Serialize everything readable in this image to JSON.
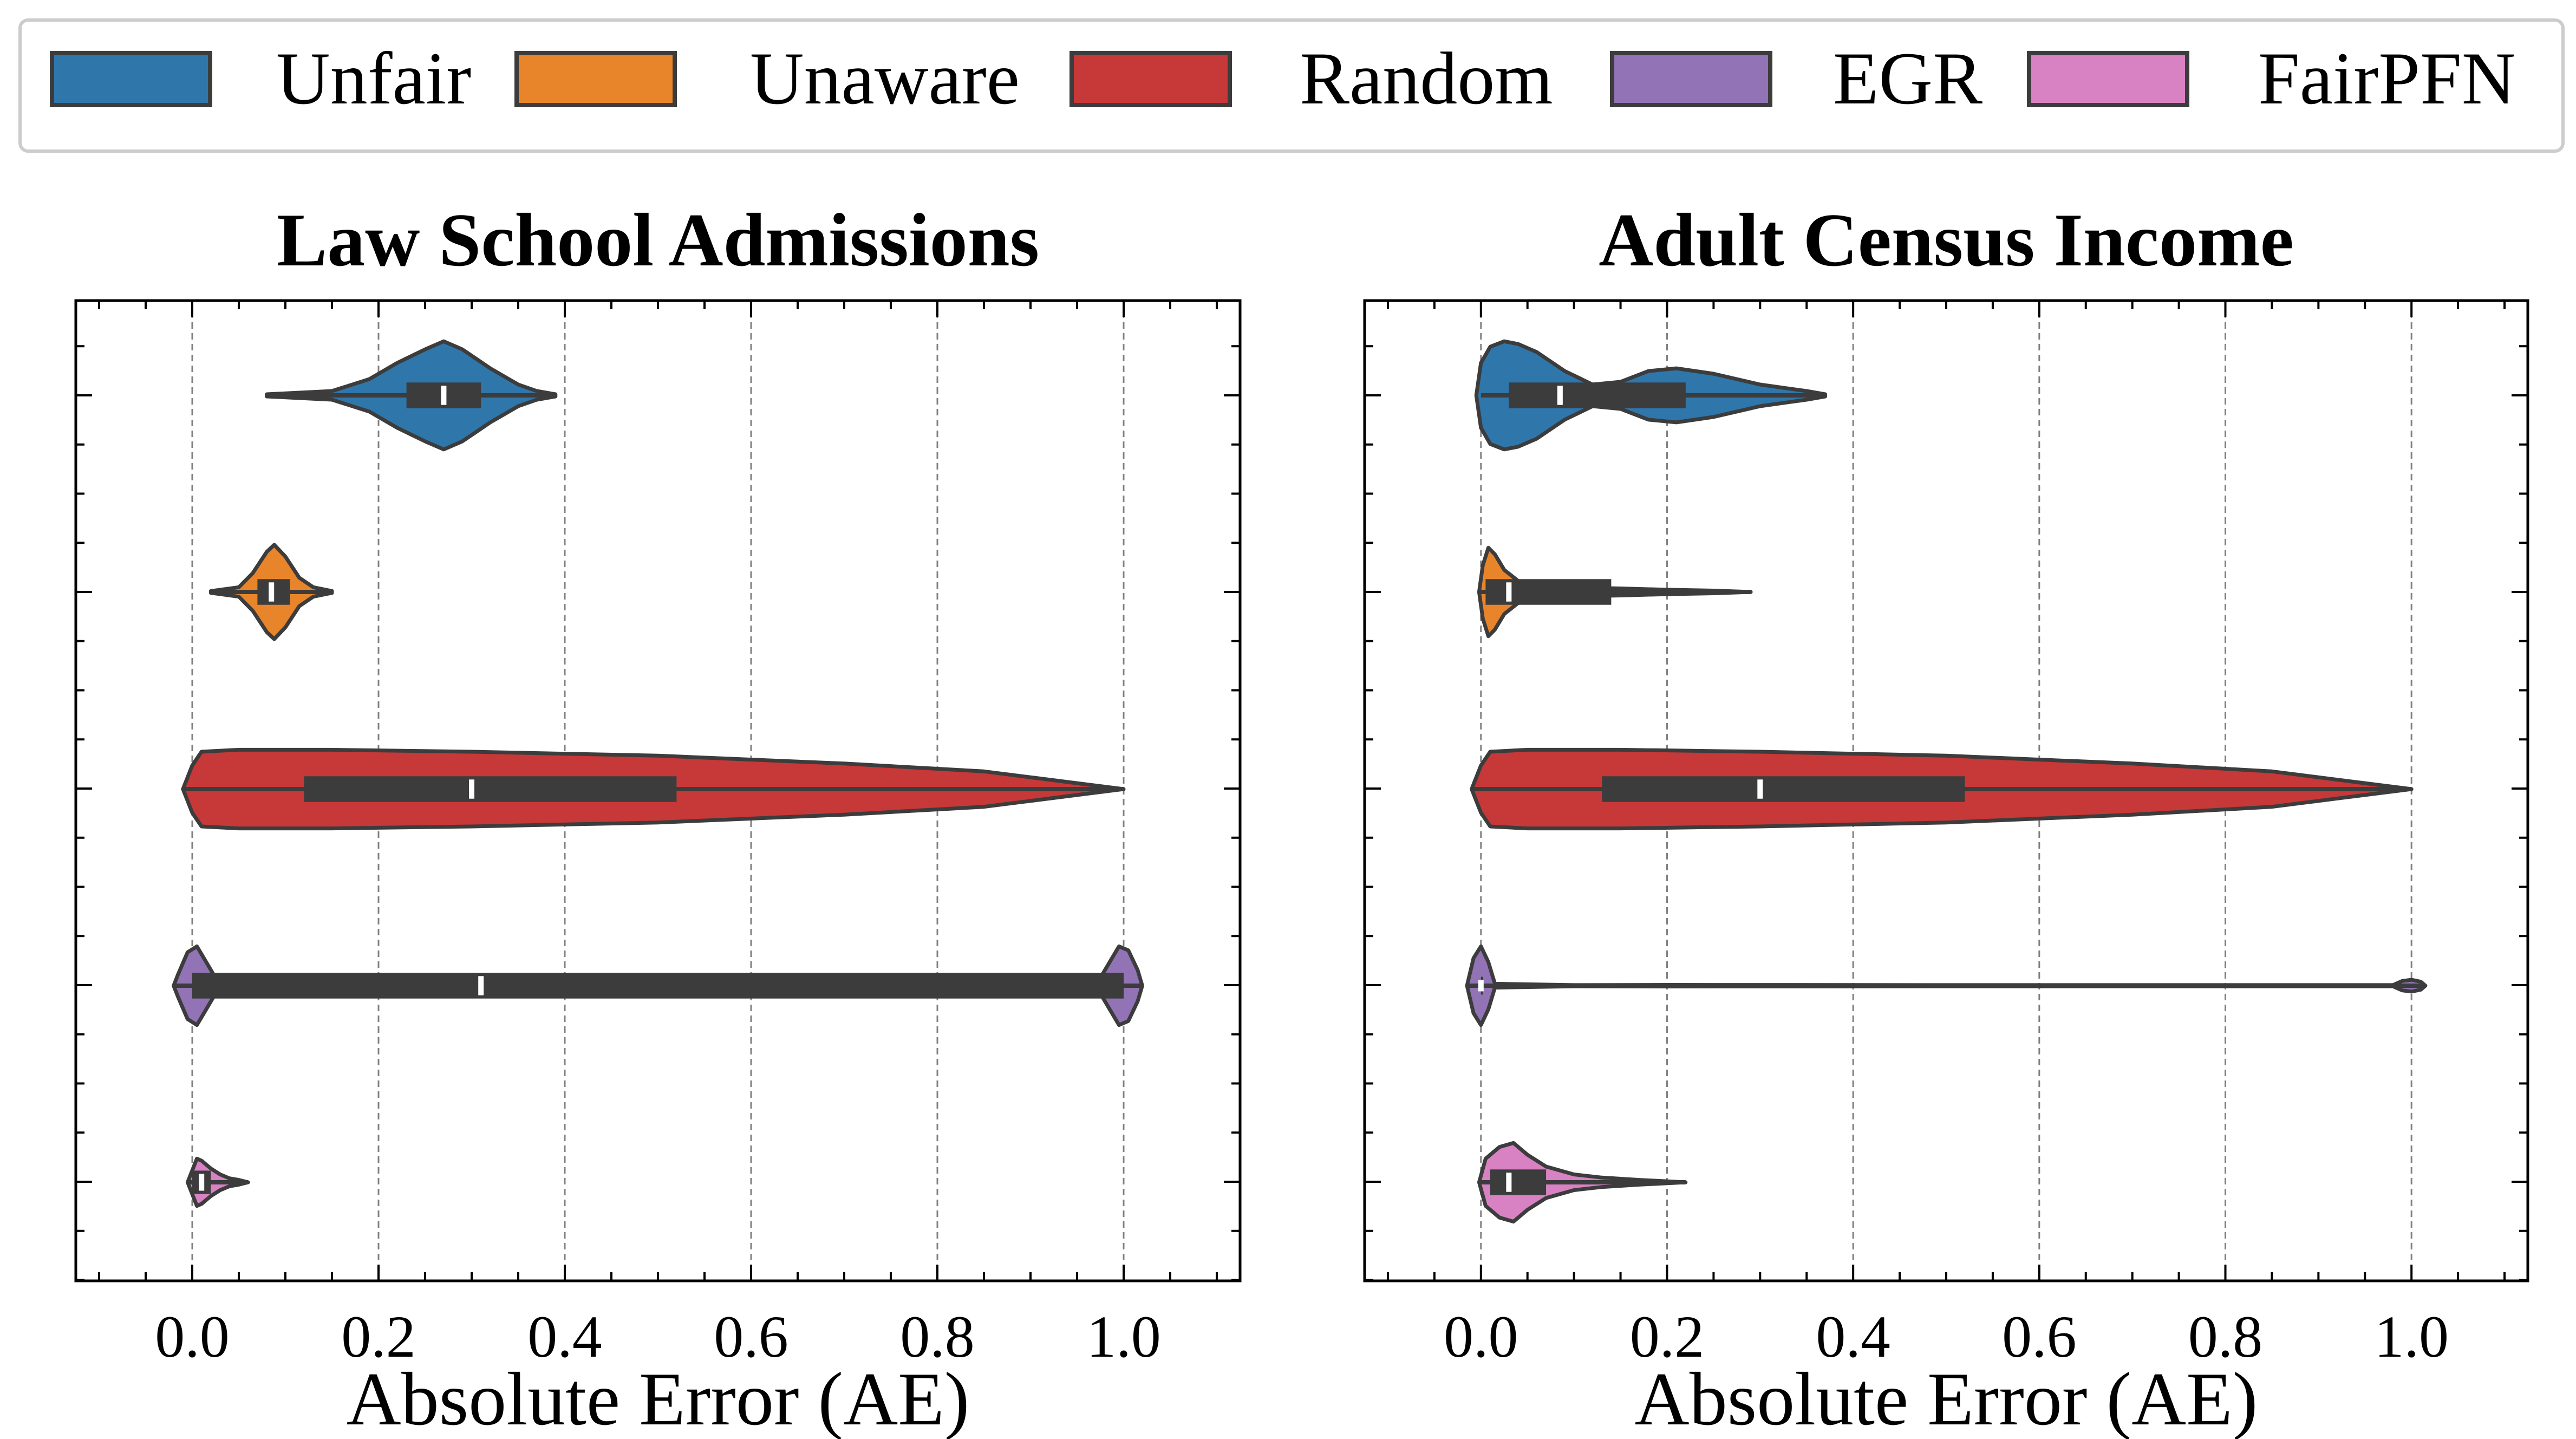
{
  "legend": {
    "items": [
      {
        "label": "Unfair",
        "color": "#2f76ab"
      },
      {
        "label": "Unaware",
        "color": "#e8852b"
      },
      {
        "label": "Random",
        "color": "#c73838"
      },
      {
        "label": "EGR",
        "color": "#9273b6"
      },
      {
        "label": "FairPFN",
        "color": "#d882c3"
      }
    ]
  },
  "chart_data": [
    {
      "type": "violin",
      "title": "Law School Admissions",
      "xlabel": "Absolute Error (AE)",
      "ylabel": "",
      "xlim": [
        -0.125,
        1.125
      ],
      "xticks": [
        "0.0",
        "0.2",
        "0.4",
        "0.6",
        "0.8",
        "1.0"
      ],
      "grid": "vertical dashed",
      "series": [
        {
          "name": "Unfair",
          "min": 0.08,
          "q1": 0.23,
          "median": 0.27,
          "q3": 0.31,
          "max": 0.39,
          "whisker_low": 0.08,
          "whisker_high": 0.39,
          "max_half_width": 0.55,
          "kde": [
            [
              0.08,
              0.02
            ],
            [
              0.15,
              0.08
            ],
            [
              0.19,
              0.3
            ],
            [
              0.22,
              0.6
            ],
            [
              0.25,
              0.85
            ],
            [
              0.27,
              1.0
            ],
            [
              0.29,
              0.85
            ],
            [
              0.32,
              0.5
            ],
            [
              0.35,
              0.2
            ],
            [
              0.37,
              0.08
            ],
            [
              0.39,
              0.02
            ]
          ]
        },
        {
          "name": "Unaware",
          "min": 0.02,
          "q1": 0.07,
          "median": 0.085,
          "q3": 0.105,
          "max": 0.15,
          "whisker_low": 0.02,
          "whisker_high": 0.15,
          "max_half_width": 0.48,
          "kde": [
            [
              0.02,
              0.02
            ],
            [
              0.05,
              0.1
            ],
            [
              0.065,
              0.4
            ],
            [
              0.08,
              0.85
            ],
            [
              0.088,
              1.0
            ],
            [
              0.1,
              0.75
            ],
            [
              0.115,
              0.3
            ],
            [
              0.13,
              0.1
            ],
            [
              0.15,
              0.02
            ]
          ]
        },
        {
          "name": "Random",
          "min": -0.01,
          "q1": 0.12,
          "median": 0.3,
          "q3": 0.52,
          "max": 1.0,
          "whisker_low": -0.01,
          "whisker_high": 1.0,
          "max_half_width": 0.4,
          "kde": [
            [
              -0.01,
              0.0
            ],
            [
              0.0,
              0.6
            ],
            [
              0.01,
              0.95
            ],
            [
              0.05,
              1.0
            ],
            [
              0.15,
              1.0
            ],
            [
              0.3,
              0.95
            ],
            [
              0.5,
              0.85
            ],
            [
              0.7,
              0.65
            ],
            [
              0.85,
              0.45
            ],
            [
              0.9,
              0.3
            ],
            [
              0.95,
              0.15
            ],
            [
              1.0,
              0.0
            ]
          ]
        },
        {
          "name": "EGR",
          "min": -0.02,
          "q1": 0.0,
          "median": 0.31,
          "q3": 1.0,
          "max": 1.02,
          "whisker_low": -0.02,
          "whisker_high": 1.02,
          "box_thick": 0.12,
          "max_half_width": 0.4,
          "kde": [
            [
              -0.02,
              0.0
            ],
            [
              -0.015,
              0.3
            ],
            [
              -0.005,
              0.85
            ],
            [
              0.005,
              1.0
            ],
            [
              0.015,
              0.6
            ],
            [
              0.025,
              0.2
            ],
            [
              0.04,
              0.03
            ],
            [
              0.1,
              0.02
            ],
            [
              0.5,
              0.02
            ],
            [
              0.96,
              0.02
            ],
            [
              0.975,
              0.2
            ],
            [
              0.985,
              0.6
            ],
            [
              0.995,
              1.0
            ],
            [
              1.005,
              0.9
            ],
            [
              1.015,
              0.4
            ],
            [
              1.02,
              0.0
            ]
          ]
        },
        {
          "name": "FairPFN",
          "min": -0.005,
          "q1": 0.0,
          "median": 0.01,
          "q3": 0.02,
          "max": 0.06,
          "whisker_low": -0.005,
          "whisker_high": 0.06,
          "box_thick": 0.09,
          "max_half_width": 0.4,
          "kde": [
            [
              -0.005,
              0.0
            ],
            [
              0.0,
              0.3
            ],
            [
              0.005,
              0.6
            ],
            [
              0.01,
              0.55
            ],
            [
              0.02,
              0.35
            ],
            [
              0.03,
              0.2
            ],
            [
              0.04,
              0.1
            ],
            [
              0.05,
              0.06
            ],
            [
              0.06,
              0.0
            ]
          ]
        }
      ]
    },
    {
      "type": "violin",
      "title": "Adult Census Income",
      "xlabel": "Absolute Error (AE)",
      "ylabel": "",
      "xlim": [
        -0.125,
        1.125
      ],
      "xticks": [
        "0.0",
        "0.2",
        "0.4",
        "0.6",
        "0.8",
        "1.0"
      ],
      "grid": "vertical dashed",
      "series": [
        {
          "name": "Unfair",
          "min": 0.0,
          "q1": 0.03,
          "median": 0.085,
          "q3": 0.22,
          "max": 0.37,
          "whisker_low": 0.0,
          "whisker_high": 0.37,
          "max_half_width": 0.55,
          "kde": [
            [
              -0.005,
              0.0
            ],
            [
              0.0,
              0.6
            ],
            [
              0.01,
              0.9
            ],
            [
              0.025,
              1.0
            ],
            [
              0.04,
              0.95
            ],
            [
              0.06,
              0.8
            ],
            [
              0.09,
              0.45
            ],
            [
              0.12,
              0.2
            ],
            [
              0.15,
              0.25
            ],
            [
              0.18,
              0.45
            ],
            [
              0.21,
              0.5
            ],
            [
              0.25,
              0.4
            ],
            [
              0.3,
              0.2
            ],
            [
              0.35,
              0.08
            ],
            [
              0.37,
              0.02
            ]
          ]
        },
        {
          "name": "Unaware",
          "min": 0.0,
          "q1": 0.005,
          "median": 0.03,
          "q3": 0.14,
          "max": 0.29,
          "whisker_low": 0.0,
          "whisker_high": 0.29,
          "max_half_width": 0.45,
          "kde": [
            [
              -0.002,
              0.0
            ],
            [
              0.002,
              0.6
            ],
            [
              0.008,
              1.0
            ],
            [
              0.015,
              0.85
            ],
            [
              0.025,
              0.5
            ],
            [
              0.04,
              0.25
            ],
            [
              0.06,
              0.12
            ],
            [
              0.1,
              0.1
            ],
            [
              0.15,
              0.08
            ],
            [
              0.2,
              0.05
            ],
            [
              0.25,
              0.03
            ],
            [
              0.29,
              0.0
            ]
          ]
        },
        {
          "name": "Random",
          "min": -0.01,
          "q1": 0.13,
          "median": 0.3,
          "q3": 0.52,
          "max": 1.0,
          "whisker_low": -0.01,
          "whisker_high": 1.0,
          "max_half_width": 0.4,
          "kde": [
            [
              -0.01,
              0.0
            ],
            [
              0.0,
              0.6
            ],
            [
              0.01,
              0.95
            ],
            [
              0.05,
              1.0
            ],
            [
              0.15,
              1.0
            ],
            [
              0.3,
              0.95
            ],
            [
              0.5,
              0.85
            ],
            [
              0.7,
              0.65
            ],
            [
              0.85,
              0.45
            ],
            [
              0.9,
              0.3
            ],
            [
              0.95,
              0.15
            ],
            [
              1.0,
              0.0
            ]
          ]
        },
        {
          "name": "EGR",
          "min": -0.015,
          "q1": 0.0,
          "median": 0.0,
          "q3": 0.0,
          "max": 1.015,
          "whisker_low": -0.015,
          "whisker_high": 1.015,
          "box_thick": 0.02,
          "max_half_width": 0.4,
          "kde": [
            [
              -0.015,
              0.0
            ],
            [
              -0.008,
              0.7
            ],
            [
              0.0,
              1.0
            ],
            [
              0.008,
              0.6
            ],
            [
              0.015,
              0.05
            ],
            [
              0.1,
              0.015
            ],
            [
              0.2,
              0.02
            ],
            [
              0.5,
              0.015
            ],
            [
              0.98,
              0.015
            ],
            [
              0.99,
              0.12
            ],
            [
              1.0,
              0.15
            ],
            [
              1.01,
              0.1
            ],
            [
              1.015,
              0.0
            ]
          ]
        },
        {
          "name": "FairPFN",
          "min": 0.0,
          "q1": 0.01,
          "median": 0.03,
          "q3": 0.07,
          "max": 0.22,
          "whisker_low": 0.0,
          "whisker_high": 0.22,
          "max_half_width": 0.4,
          "kde": [
            [
              -0.002,
              0.0
            ],
            [
              0.005,
              0.6
            ],
            [
              0.02,
              0.9
            ],
            [
              0.035,
              1.0
            ],
            [
              0.05,
              0.7
            ],
            [
              0.07,
              0.4
            ],
            [
              0.1,
              0.2
            ],
            [
              0.13,
              0.12
            ],
            [
              0.17,
              0.06
            ],
            [
              0.22,
              0.0
            ]
          ]
        }
      ]
    }
  ]
}
